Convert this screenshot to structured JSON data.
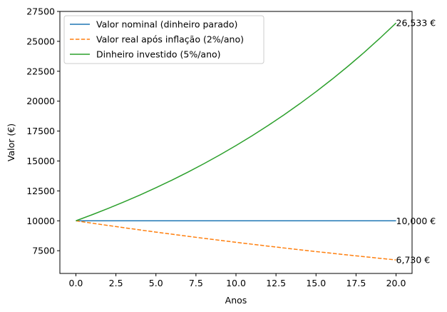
{
  "chart_data": {
    "type": "line",
    "title": "",
    "xlabel": "Anos",
    "ylabel": "Valor (€)",
    "xlim": [
      -1,
      21
    ],
    "ylim": [
      5600,
      27500
    ],
    "x_ticks": [
      0.0,
      2.5,
      5.0,
      7.5,
      10.0,
      12.5,
      15.0,
      17.5,
      20.0
    ],
    "x_tick_labels": [
      "0.0",
      "2.5",
      "5.0",
      "7.5",
      "10.0",
      "12.5",
      "15.0",
      "17.5",
      "20.0"
    ],
    "y_ticks": [
      7500,
      10000,
      12500,
      15000,
      17500,
      20000,
      22500,
      25000,
      27500
    ],
    "y_tick_labels": [
      "7500",
      "10000",
      "12500",
      "15000",
      "17500",
      "20000",
      "22500",
      "25000",
      "27500"
    ],
    "grid": false,
    "legend_position": "top-left",
    "x": [
      0,
      1,
      2,
      3,
      4,
      5,
      6,
      7,
      8,
      9,
      10,
      11,
      12,
      13,
      14,
      15,
      16,
      17,
      18,
      19,
      20
    ],
    "series": [
      {
        "name": "Valor nominal (dinheiro parado)",
        "color": "#1f77b4",
        "style": "solid",
        "values": [
          10000,
          10000,
          10000,
          10000,
          10000,
          10000,
          10000,
          10000,
          10000,
          10000,
          10000,
          10000,
          10000,
          10000,
          10000,
          10000,
          10000,
          10000,
          10000,
          10000,
          10000
        ]
      },
      {
        "name": "Valor real após inflação (2%/ano)",
        "color": "#ff7f0e",
        "style": "dashed",
        "values": [
          10000,
          9804,
          9612,
          9423,
          9238,
          9057,
          8880,
          8706,
          8535,
          8368,
          8203,
          8043,
          7885,
          7730,
          7579,
          7430,
          7284,
          7142,
          7002,
          6864,
          6730
        ]
      },
      {
        "name": "Dinheiro investido (5%/ano)",
        "color": "#2ca02c",
        "style": "solid",
        "values": [
          10000,
          10500,
          11025,
          11576,
          12155,
          12763,
          13401,
          14071,
          14775,
          15513,
          16289,
          17103,
          17959,
          18856,
          19799,
          20789,
          21829,
          22920,
          24066,
          25270,
          26533
        ]
      }
    ],
    "annotations": [
      {
        "x": 20,
        "y": 26533,
        "text": "26,533 €"
      },
      {
        "x": 20,
        "y": 10000,
        "text": "10,000 €"
      },
      {
        "x": 20,
        "y": 6730,
        "text": "6,730 €"
      }
    ]
  }
}
